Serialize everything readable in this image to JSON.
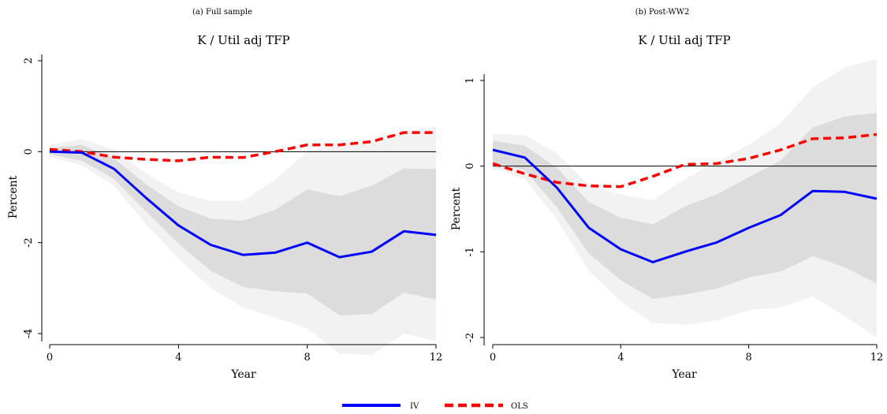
{
  "chart_data": [
    {
      "type": "line",
      "caption": "(a) Full sample",
      "title": "K / Util adj TFP",
      "xlabel": "Year",
      "ylabel": "Percent",
      "xlim": [
        0,
        12
      ],
      "ylim": [
        -4.6,
        2.2
      ],
      "xticks": [
        0,
        4,
        8,
        12
      ],
      "yticks": [
        -4,
        -2,
        0,
        2
      ],
      "x": [
        0,
        1,
        2,
        3,
        4,
        5,
        6,
        7,
        8,
        9,
        10,
        11,
        12
      ],
      "series": [
        {
          "name": "IV",
          "color": "#0000ff",
          "style": "solid",
          "values": [
            0,
            -0.02,
            -0.38,
            -1.02,
            -1.62,
            -2.05,
            -2.27,
            -2.22,
            -2.0,
            -2.32,
            -2.2,
            -1.75,
            -1.83
          ]
        },
        {
          "name": "OLS",
          "color": "#ff0000",
          "style": "dashed",
          "values": [
            0.05,
            0.0,
            -0.12,
            -0.17,
            -0.2,
            -0.12,
            -0.13,
            0.0,
            0.15,
            0.15,
            0.22,
            0.42,
            0.42
          ]
        }
      ],
      "bands": [
        {
          "level": "outer",
          "color": "#f2f2f2",
          "upper": [
            0.15,
            0.28,
            0.05,
            -0.48,
            -0.9,
            -1.08,
            -1.08,
            -0.62,
            0.0,
            0.15,
            0.22,
            0.45,
            0.55
          ],
          "lower": [
            -0.12,
            -0.3,
            -0.75,
            -1.6,
            -2.35,
            -3.0,
            -3.42,
            -3.65,
            -3.88,
            -4.45,
            -4.47,
            -4.0,
            -4.17
          ]
        },
        {
          "level": "inner",
          "color": "#dcdcdc",
          "upper": [
            0.08,
            0.15,
            -0.15,
            -0.72,
            -1.2,
            -1.47,
            -1.52,
            -1.28,
            -0.83,
            -0.98,
            -0.75,
            -0.37,
            -0.38
          ]
        },
        {
          "level": "inner",
          "color": "#dcdcdc",
          "lower": [
            -0.06,
            -0.2,
            -0.6,
            -1.32,
            -2.02,
            -2.62,
            -2.97,
            -3.07,
            -3.12,
            -3.6,
            -3.57,
            -3.1,
            -3.25
          ]
        }
      ]
    },
    {
      "type": "line",
      "caption": "(b) Post-WW2",
      "title": "K / Util adj TFP",
      "xlabel": "Year",
      "ylabel": "Percent",
      "xlim": [
        0,
        12
      ],
      "ylim": [
        -2.2,
        1.3
      ],
      "xticks": [
        0,
        4,
        8,
        12
      ],
      "yticks": [
        -2,
        -1,
        0,
        1
      ],
      "x": [
        0,
        1,
        2,
        3,
        4,
        5,
        6,
        7,
        8,
        9,
        10,
        11,
        12
      ],
      "series": [
        {
          "name": "IV",
          "color": "#0000ff",
          "style": "solid",
          "values": [
            0.19,
            0.1,
            -0.25,
            -0.72,
            -0.97,
            -1.12,
            -1.0,
            -0.89,
            -0.72,
            -0.57,
            -0.29,
            -0.3,
            -0.38
          ]
        },
        {
          "name": "OLS",
          "color": "#ff0000",
          "style": "dashed",
          "values": [
            0.03,
            -0.09,
            -0.19,
            -0.23,
            -0.24,
            -0.12,
            0.02,
            0.03,
            0.09,
            0.19,
            0.32,
            0.33,
            0.37
          ]
        }
      ],
      "bands": [
        {
          "level": "outer",
          "color": "#f2f2f2",
          "upper": [
            0.38,
            0.36,
            0.15,
            -0.22,
            -0.33,
            -0.4,
            -0.15,
            0.05,
            0.25,
            0.5,
            0.92,
            1.15,
            1.25
          ],
          "lower": [
            -0.02,
            -0.15,
            -0.62,
            -1.22,
            -1.58,
            -1.83,
            -1.85,
            -1.8,
            -1.68,
            -1.65,
            -1.52,
            -1.75,
            -2.0
          ]
        },
        {
          "level": "inner",
          "color": "#dcdcdc",
          "upper": [
            0.3,
            0.24,
            -0.02,
            -0.42,
            -0.6,
            -0.68,
            -0.47,
            -0.33,
            -0.13,
            0.07,
            0.45,
            0.58,
            0.62
          ]
        },
        {
          "level": "inner",
          "color": "#dcdcdc",
          "lower": [
            0.05,
            -0.05,
            -0.48,
            -1.02,
            -1.33,
            -1.55,
            -1.5,
            -1.43,
            -1.3,
            -1.23,
            -1.05,
            -1.18,
            -1.37
          ]
        }
      ]
    }
  ],
  "legend": {
    "items": [
      {
        "label": "IV",
        "color": "#0000ff",
        "style": "solid"
      },
      {
        "label": "OLS",
        "color": "#ff0000",
        "style": "dashed"
      }
    ]
  }
}
